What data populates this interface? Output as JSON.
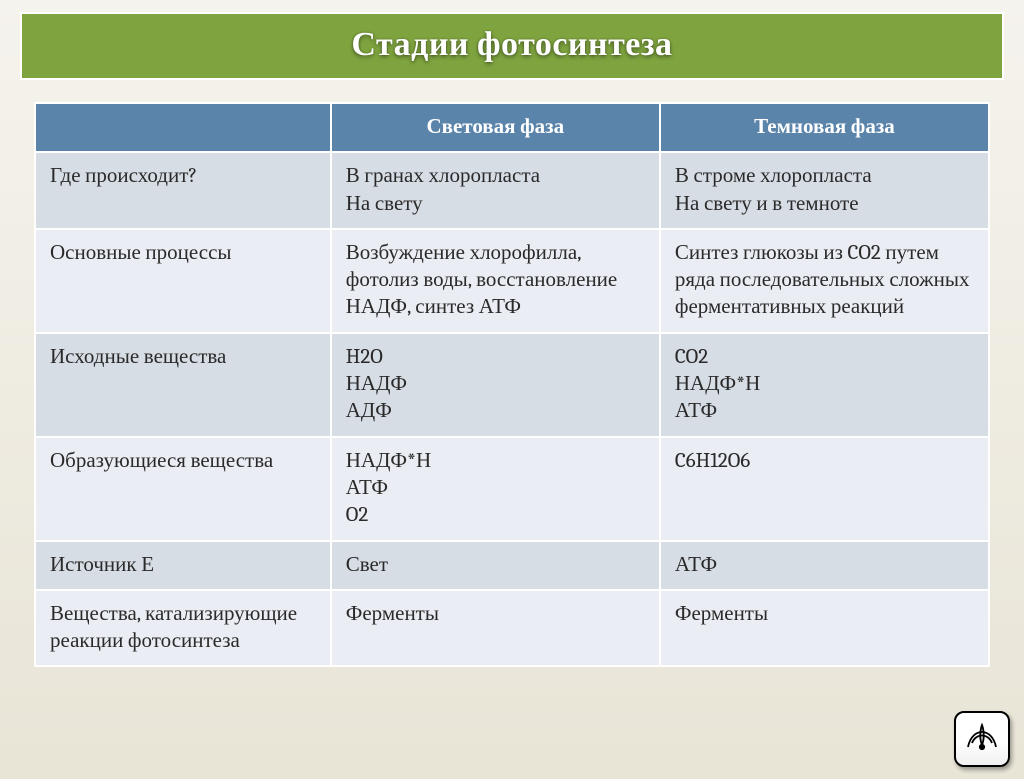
{
  "title": "Стадии фотосинтеза",
  "table": {
    "type": "table",
    "header_bg": "#5b84aa",
    "header_color": "#ffffff",
    "row_odd_bg": "#d7dde5",
    "row_even_bg": "#eaedf3",
    "border_color": "#ffffff",
    "cell_fontsize": 21,
    "columns": [
      "",
      "Световая фаза",
      "Темновая фаза"
    ],
    "column_widths": [
      "31%",
      "34.5%",
      "34.5%"
    ],
    "rows": [
      [
        "Где происходит?",
        "В гранах хлоропласта\nНа свету",
        "В строме хлоропласта\nНа свету и в темноте"
      ],
      [
        "Основные процессы",
        "Возбуждение хлорофилла, фотолиз воды, восстановление НАДФ, синтез АТФ",
        "Синтез глюкозы из CO2 путем ряда последовательных сложных ферментативных реакций"
      ],
      [
        "Исходные вещества",
        "H2O\nНАДФ\nАДФ",
        "CO2\nНАДФ*Н\nАТФ"
      ],
      [
        "Образующиеся вещества",
        "НАДФ*Н\nАТФ\nO2",
        "C6H12O6"
      ],
      [
        "Источник Е",
        "Свет",
        "АТФ"
      ],
      [
        "Вещества, катализирующие реакции фотосинтеза",
        "Ферменты",
        "Ферменты"
      ]
    ]
  },
  "stamp_icon": "flourish-icon",
  "colors": {
    "title_bar_bg": "#7fa43f",
    "title_text": "#ffffff",
    "body_gradient_top": "#f5f3ed",
    "body_gradient_bottom": "#e8e4d6"
  }
}
